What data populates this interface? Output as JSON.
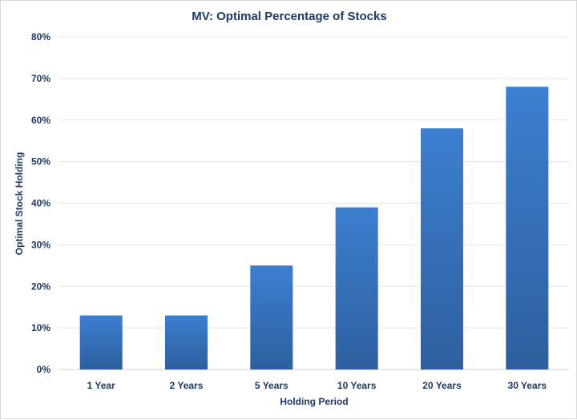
{
  "chart_data": {
    "type": "bar",
    "title": "MV: Optimal Percentage of Stocks",
    "xlabel": "Holding Period",
    "ylabel": "Optimal Stock Holding",
    "categories": [
      "1 Year",
      "2 Years",
      "5 Years",
      "10 Years",
      "20 Years",
      "30 Years"
    ],
    "values": [
      13,
      13,
      25,
      39,
      58,
      68
    ],
    "ylim": [
      0,
      80
    ],
    "yticks": [
      "0%",
      "10%",
      "20%",
      "30%",
      "40%",
      "50%",
      "60%",
      "70%",
      "80%"
    ],
    "grid": true,
    "legend": "none",
    "colors": {
      "bar_top": "#3c7fd0",
      "bar_bottom": "#2e5f9e",
      "text": "#1f3864"
    }
  }
}
